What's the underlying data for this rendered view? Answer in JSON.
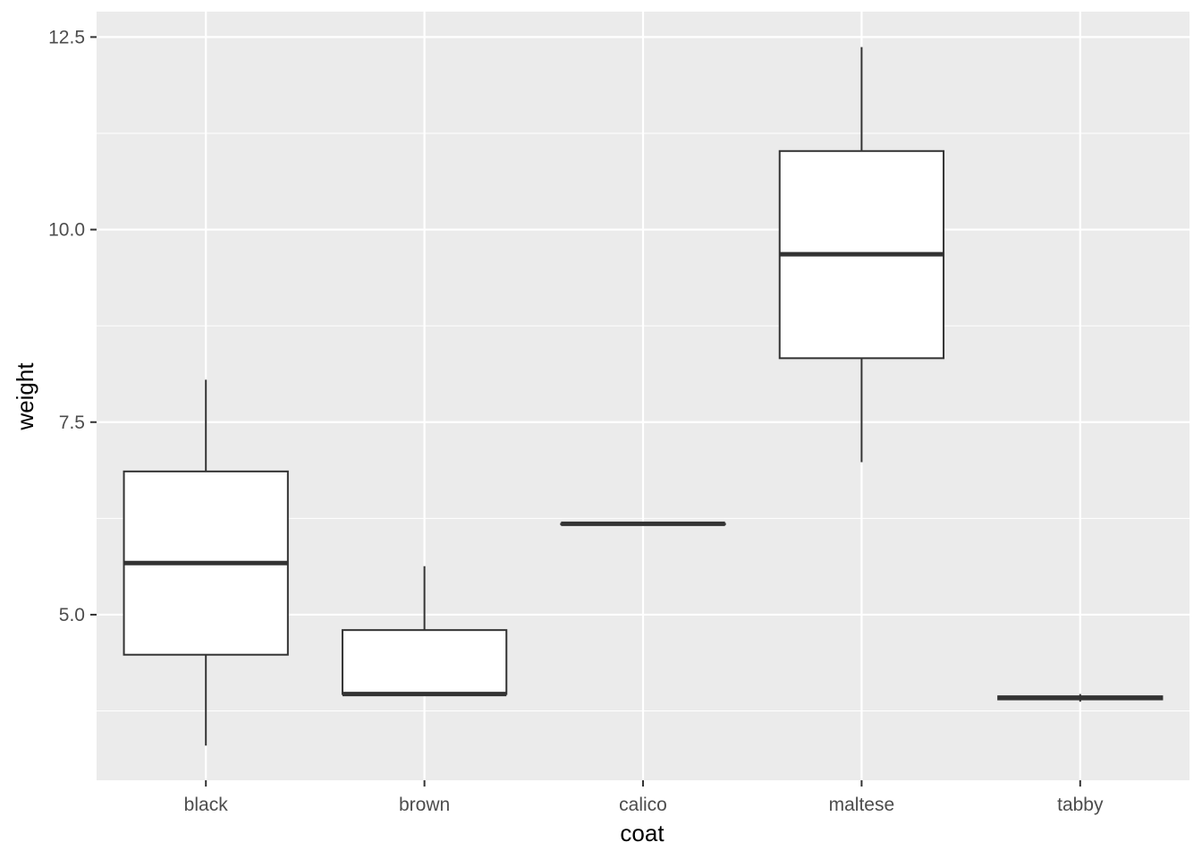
{
  "chart_data": {
    "type": "boxplot",
    "xlabel": "coat",
    "ylabel": "weight",
    "categories": [
      "black",
      "brown",
      "calico",
      "maltese",
      "tabby"
    ],
    "boxes": [
      {
        "category": "black",
        "min": 3.3,
        "q1": 4.48,
        "median": 5.67,
        "q3": 6.86,
        "max": 8.05
      },
      {
        "category": "brown",
        "min": 3.97,
        "q1": 3.97,
        "median": 3.97,
        "q3": 4.8,
        "max": 5.63
      },
      {
        "category": "calico",
        "min": 6.18,
        "q1": 6.18,
        "median": 6.18,
        "q3": 6.18,
        "max": 6.18
      },
      {
        "category": "maltese",
        "min": 6.98,
        "q1": 8.33,
        "median": 9.68,
        "q3": 11.02,
        "max": 12.37
      },
      {
        "category": "tabby",
        "min": 3.87,
        "q1": 3.9,
        "median": 3.92,
        "q3": 3.94,
        "max": 3.97
      }
    ],
    "ylim": [
      2.85,
      12.83
    ],
    "yticks": [
      5.0,
      7.5,
      10.0,
      12.5
    ],
    "ytick_labels": [
      "5.0",
      "7.5",
      "10.0",
      "12.5"
    ],
    "yminor_ticks": [
      3.75,
      6.25,
      8.75,
      11.25
    ],
    "grid": true,
    "colors": {
      "panel_background": "#ebebeb",
      "grid": "#ffffff",
      "box_fill": "#ffffff",
      "box_stroke": "#333333",
      "tick_label": "#4d4d4d",
      "axis_title": "#000000"
    }
  }
}
